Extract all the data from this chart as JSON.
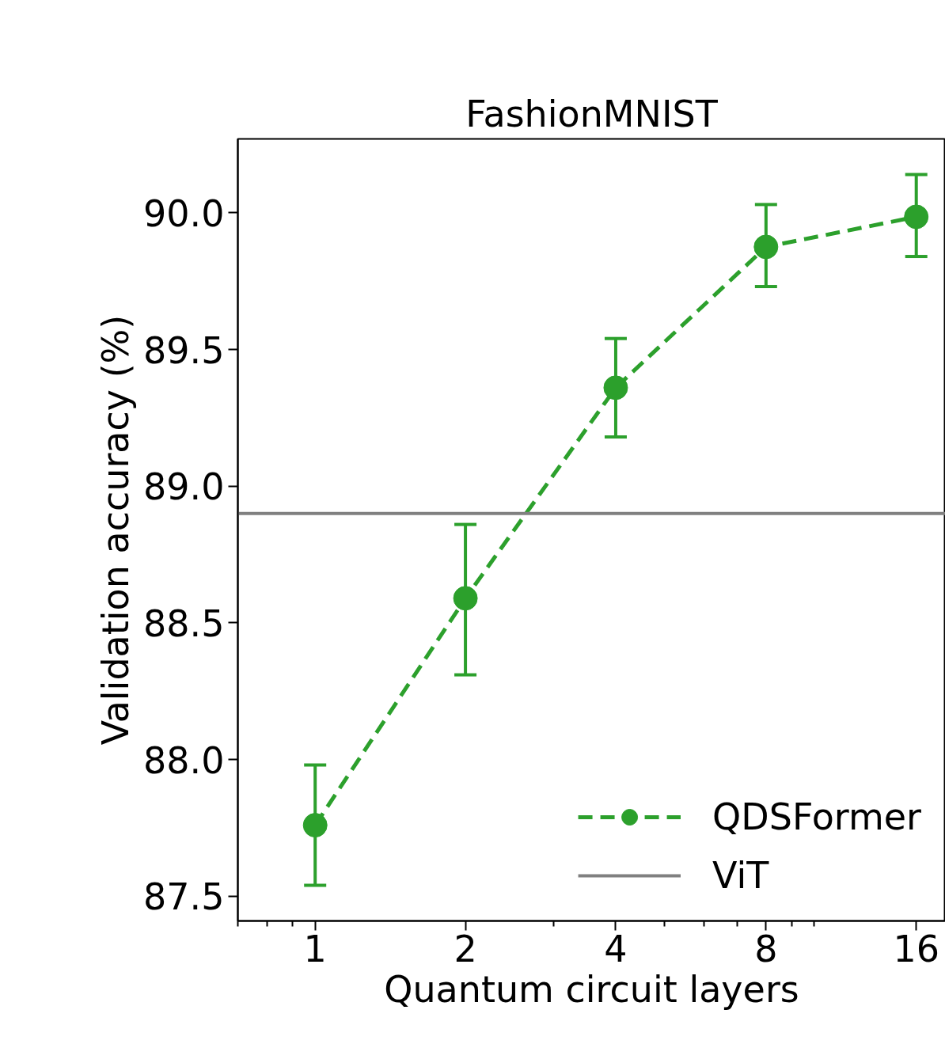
{
  "chart_data": {
    "type": "line",
    "title": "FashionMNIST",
    "xlabel": "Quantum circuit layers",
    "ylabel": "Validation accuracy (%)",
    "x": [
      1,
      2,
      4,
      8,
      16
    ],
    "series": [
      {
        "name": "QDSFormer",
        "color": "#2ca02c",
        "values": [
          87.76,
          88.59,
          89.36,
          89.875,
          89.985
        ],
        "errors": [
          [
            87.54,
            87.98
          ],
          [
            88.31,
            88.86
          ],
          [
            89.18,
            89.54
          ],
          [
            89.73,
            90.03
          ],
          [
            89.84,
            90.14
          ]
        ]
      }
    ],
    "ref_lines": [
      {
        "axis": "y",
        "value": 88.9,
        "label": "ViT",
        "color": "#808080",
        "line_style": "solid"
      }
    ],
    "log": "x",
    "xlim": [
      0.7,
      18.3
    ],
    "xticks": [
      1,
      2,
      4,
      8,
      16
    ],
    "ylim": [
      87.41,
      90.27
    ],
    "yticks": [
      {
        "value": 87.5,
        "label": "87.5"
      },
      {
        "value": 88.0,
        "label": "88.0"
      },
      {
        "value": 88.5,
        "label": "88.5"
      },
      {
        "value": 89.0,
        "label": "89.0"
      },
      {
        "value": 89.5,
        "label": "89.5"
      },
      {
        "value": 90.0,
        "label": "90.0"
      }
    ],
    "grid": false,
    "legend": "bottom right",
    "marker": "circle",
    "line_style": "dashed"
  }
}
